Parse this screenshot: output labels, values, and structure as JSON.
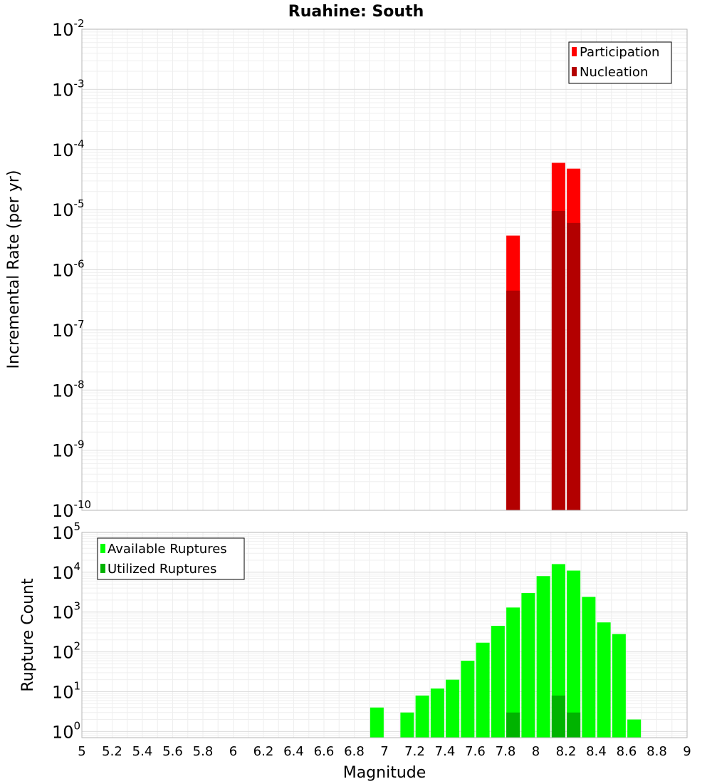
{
  "chart_data": {
    "title": "Ruahine: South",
    "xlabel": "Magnitude",
    "xlim": [
      5,
      9
    ],
    "xticks": [
      "5",
      "5.2",
      "5.4",
      "5.6",
      "5.8",
      "6",
      "6.2",
      "6.4",
      "6.6",
      "6.8",
      "7",
      "7.2",
      "7.4",
      "7.6",
      "7.8",
      "8",
      "8.2",
      "8.4",
      "8.6",
      "8.8",
      "9"
    ],
    "panels": [
      {
        "type": "bar",
        "ylabel": "Incremental Rate (per yr)",
        "yscale": "log",
        "ylim": [
          1e-10,
          0.01
        ],
        "ytick_exponents": [
          "-10",
          "-9",
          "-8",
          "-7",
          "-6",
          "-5",
          "-4",
          "-3",
          "-2"
        ],
        "legend_position": "top-right",
        "series": [
          {
            "name": "Participation",
            "color": "#ff0000",
            "x": [
              7.85,
              8.15,
              8.25
            ],
            "values": [
              3.7e-06,
              6e-05,
              4.8e-05
            ]
          },
          {
            "name": "Nucleation",
            "color": "#b30000",
            "x": [
              7.85,
              8.15,
              8.25
            ],
            "values": [
              4.5e-07,
              9.5e-06,
              6e-06
            ]
          }
        ]
      },
      {
        "type": "bar",
        "ylabel": "Rupture Count",
        "yscale": "log",
        "ylim": [
          0.7,
          100000.0
        ],
        "ytick_exponents": [
          "0",
          "1",
          "2",
          "3",
          "4",
          "5"
        ],
        "legend_position": "top-left",
        "series": [
          {
            "name": "Available Ruptures",
            "color": "#00ff00",
            "x": [
              6.95,
              7.15,
              7.25,
              7.35,
              7.45,
              7.55,
              7.65,
              7.75,
              7.85,
              7.95,
              8.05,
              8.15,
              8.25,
              8.35,
              8.45,
              8.55,
              8.65
            ],
            "values": [
              4,
              3,
              8,
              12,
              20,
              60,
              170,
              450,
              1300,
              3000,
              8000,
              16000,
              11000,
              2400,
              550,
              280,
              2
            ]
          },
          {
            "name": "Utilized Ruptures",
            "color": "#00b300",
            "x": [
              7.85,
              8.15,
              8.25
            ],
            "values": [
              3,
              8,
              3
            ]
          }
        ]
      }
    ]
  }
}
